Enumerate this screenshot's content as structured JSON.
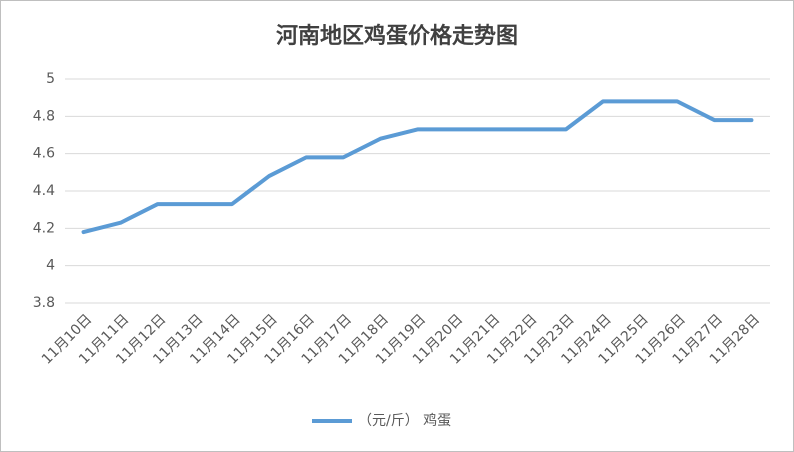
{
  "chart_data": {
    "type": "line",
    "title": "河南地区鸡蛋价格走势图",
    "categories": [
      "11月10日",
      "11月11日",
      "11月12日",
      "11月13日",
      "11月14日",
      "11月15日",
      "11月16日",
      "11月17日",
      "11月18日",
      "11月19日",
      "11月20日",
      "11月21日",
      "11月22日",
      "11月23日",
      "11月24日",
      "11月25日",
      "11月26日",
      "11月27日",
      "11月28日"
    ],
    "series": [
      {
        "name": "（元/斤） 鸡蛋",
        "color": "#5b9bd5",
        "values": [
          4.18,
          4.23,
          4.33,
          4.33,
          4.33,
          4.48,
          4.58,
          4.58,
          4.68,
          4.73,
          4.73,
          4.73,
          4.73,
          4.73,
          4.88,
          4.88,
          4.88,
          4.78,
          4.78
        ]
      }
    ],
    "ylim": [
      3.8,
      5
    ],
    "yticks": [
      3.8,
      4,
      4.2,
      4.4,
      4.6,
      4.8,
      5
    ],
    "grid": true,
    "legend": "bottom"
  }
}
